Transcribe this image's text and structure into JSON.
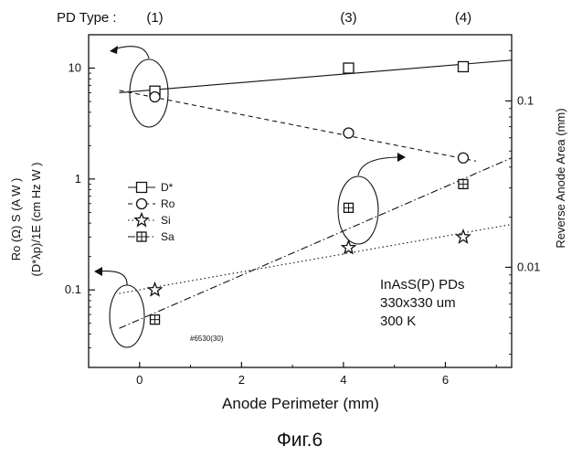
{
  "figure": {
    "caption": "Фиг.6",
    "pd_type_label": "PD Type :",
    "pd_types": [
      {
        "label": "(1)",
        "x": 0.3
      },
      {
        "label": "(3)",
        "x": 4.1
      },
      {
        "label": "(4)",
        "x": 6.35
      }
    ],
    "sample_id": "#6530(30)",
    "annotation_lines": [
      "InAsS(P) PDs",
      "330x330 um",
      "300 K"
    ]
  },
  "chart_data": {
    "type": "scatter",
    "xlabel": "Anode Perimeter (mm)",
    "xlim": [
      -1,
      7.3
    ],
    "x_ticks": [
      0,
      2,
      4,
      6
    ],
    "ylabel_left_lines": [
      "Ro (Ω) S (A W  )",
      "(D*λp)/1E  (cm Hz   W  )"
    ],
    "ylim_left": [
      0.02,
      20
    ],
    "yscale_left": "log",
    "y_ticks_left": [
      {
        "v": 0.1,
        "label": "0.1"
      },
      {
        "v": 1,
        "label": "1"
      },
      {
        "v": 10,
        "label": "10"
      }
    ],
    "ylabel_right": "Reverse Anode Area (mm)",
    "ylim_right": [
      0.0025,
      0.25
    ],
    "yscale_right": "log",
    "y_ticks_right": [
      {
        "v": 0.01,
        "label": "0.01"
      },
      {
        "v": 0.1,
        "label": "0.1"
      }
    ],
    "legend_position": "left-middle",
    "series": [
      {
        "name": "D*",
        "marker": "square",
        "axis": "left",
        "x": [
          0.3,
          4.1,
          6.35
        ],
        "y": [
          6.2,
          10.0,
          10.3
        ],
        "fit": {
          "style": "solid",
          "x": [
            -0.4,
            7.3
          ],
          "y": [
            6.0,
            11.8
          ]
        }
      },
      {
        "name": "Ro",
        "marker": "circle",
        "axis": "left",
        "x": [
          0.3,
          4.1,
          6.35
        ],
        "y": [
          5.5,
          2.6,
          1.55
        ],
        "fit": {
          "style": "dashed",
          "x": [
            -0.4,
            6.6
          ],
          "y": [
            6.3,
            1.45
          ]
        }
      },
      {
        "name": "Si",
        "marker": "star",
        "axis": "left",
        "x": [
          0.3,
          4.1,
          6.35
        ],
        "y": [
          0.1,
          0.24,
          0.3
        ],
        "fit": {
          "style": "dotted",
          "x": [
            -0.4,
            7.3
          ],
          "y": [
            0.093,
            0.39
          ]
        }
      },
      {
        "name": "Sa",
        "marker": "boxplus",
        "axis": "left",
        "x": [
          0.3,
          4.1,
          6.35
        ],
        "y": [
          0.054,
          0.55,
          0.9
        ],
        "fit": {
          "style": "dashdot",
          "x": [
            -0.4,
            7.3
          ],
          "y": [
            0.045,
            1.55
          ]
        }
      }
    ]
  }
}
